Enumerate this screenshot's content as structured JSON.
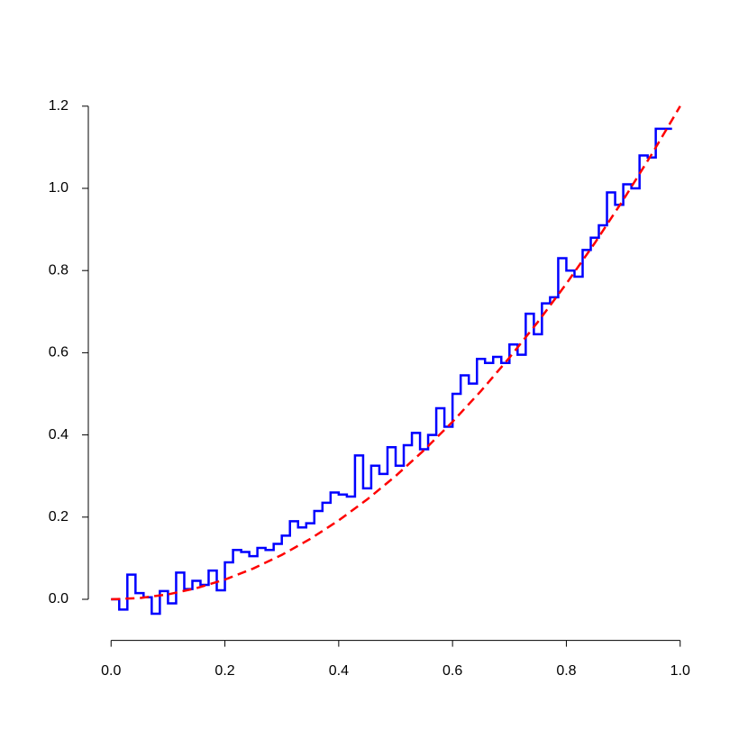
{
  "chart_data": {
    "type": "step",
    "xlim": [
      -0.04,
      1.04
    ],
    "ylim": [
      -0.1,
      1.25
    ],
    "xticks": [
      {
        "value": 0,
        "label": "0.0"
      },
      0.2,
      0.4,
      0.6,
      0.8,
      {
        "value": 1,
        "label": "1.0"
      }
    ],
    "yticks": [
      {
        "value": 0,
        "label": "0.0"
      },
      0.2,
      0.4,
      0.6,
      0.8,
      {
        "value": 1,
        "label": "1.0"
      },
      1.2
    ],
    "series": [
      {
        "type": "step",
        "color": "#0000ff",
        "x": [
          0,
          0.0143,
          0.0286,
          0.0429,
          0.0571,
          0.0714,
          0.0857,
          0.1,
          0.1143,
          0.1286,
          0.1429,
          0.1571,
          0.1714,
          0.1857,
          0.2,
          0.2143,
          0.2286,
          0.2429,
          0.2571,
          0.2714,
          0.2857,
          0.3,
          0.3143,
          0.3286,
          0.3429,
          0.3571,
          0.3714,
          0.3857,
          0.4,
          0.4143,
          0.4286,
          0.4429,
          0.4571,
          0.4714,
          0.4857,
          0.5,
          0.5143,
          0.5286,
          0.5429,
          0.5571,
          0.5714,
          0.5857,
          0.6,
          0.6143,
          0.6286,
          0.6429,
          0.6571,
          0.6714,
          0.6857,
          0.7,
          0.7143,
          0.7286,
          0.7429,
          0.7571,
          0.7714,
          0.7857,
          0.8,
          0.8143,
          0.8286,
          0.8429,
          0.8571,
          0.8714,
          0.8857,
          0.9,
          0.9143,
          0.9286,
          0.9429,
          0.9571,
          0.9714,
          0.9857
        ],
        "values": [
          0,
          -0.025,
          0.06,
          0.015,
          0.005,
          -0.035,
          0.02,
          -0.01,
          0.065,
          0.025,
          0.045,
          0.035,
          0.07,
          0.022,
          0.09,
          0.12,
          0.115,
          0.105,
          0.125,
          0.12,
          0.135,
          0.155,
          0.19,
          0.175,
          0.185,
          0.215,
          0.235,
          0.26,
          0.255,
          0.25,
          0.35,
          0.27,
          0.325,
          0.305,
          0.37,
          0.325,
          0.375,
          0.405,
          0.365,
          0.4,
          0.465,
          0.42,
          0.5,
          0.545,
          0.525,
          0.585,
          0.575,
          0.59,
          0.575,
          0.62,
          0.595,
          0.695,
          0.645,
          0.72,
          0.735,
          0.83,
          0.8,
          0.785,
          0.85,
          0.88,
          0.91,
          0.99,
          0.96,
          1.01,
          1.0,
          1.08,
          1.075,
          1.145,
          1.145,
          1.145
        ]
      },
      {
        "type": "line",
        "color": "#ff0000",
        "dashed": true,
        "x": [
          0,
          0.05,
          0.1,
          0.15,
          0.2,
          0.25,
          0.3,
          0.35,
          0.4,
          0.45,
          0.5,
          0.55,
          0.6,
          0.65,
          0.7,
          0.75,
          0.8,
          0.85,
          0.9,
          0.95,
          1
        ],
        "values": [
          0,
          0.003,
          0.012,
          0.027,
          0.048,
          0.075,
          0.108,
          0.147,
          0.192,
          0.243,
          0.3,
          0.363,
          0.432,
          0.507,
          0.588,
          0.675,
          0.768,
          0.867,
          0.972,
          1.083,
          1.2
        ]
      }
    ]
  }
}
